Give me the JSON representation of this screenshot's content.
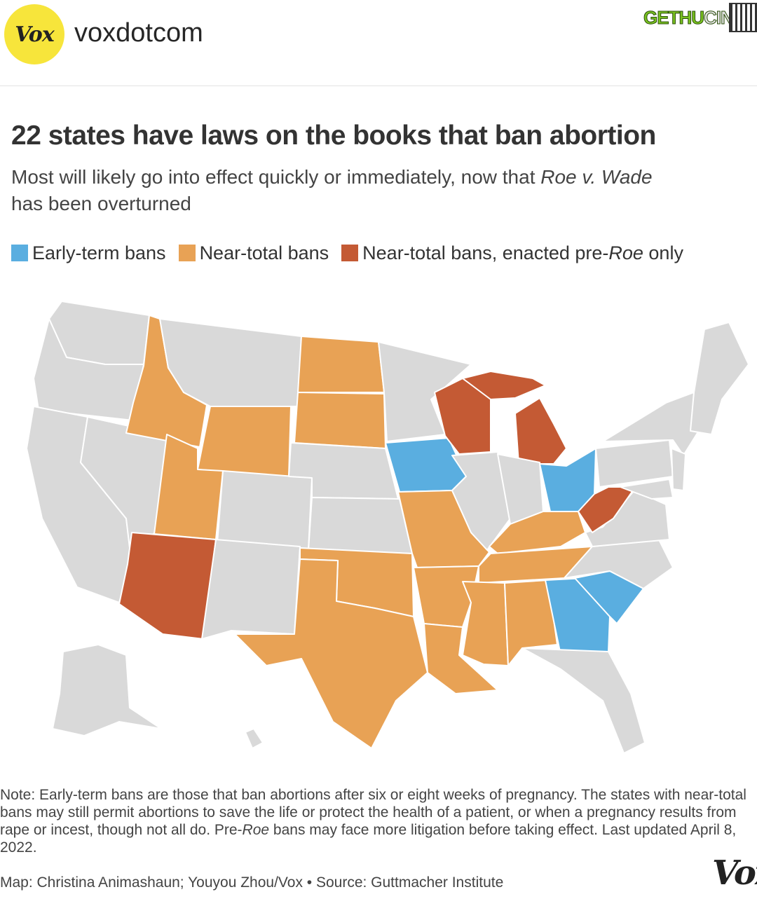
{
  "header": {
    "avatar_text": "Vox",
    "username": "voxdotcom",
    "watermark_part1": "GETHU",
    "watermark_part2": "CINEMA"
  },
  "title": "22 states have laws on the books that ban abortion",
  "subtitle_part1": "Most will likely go into effect quickly or immediately, now that ",
  "subtitle_italic": "Roe v. Wade",
  "subtitle_part2": " has been overturned",
  "legend": [
    {
      "label": "Early-term bans",
      "color": "#5aaee0"
    },
    {
      "label": "Near-total bans",
      "color": "#e8a255"
    },
    {
      "label_prefix": "Near-total bans, enacted pre-",
      "label_italic": "Roe",
      "label_suffix": " only",
      "color": "#c45a34"
    }
  ],
  "map": {
    "colors": {
      "none": "#d9d9d9",
      "early_term": "#5aaee0",
      "near_total": "#e8a255",
      "pre_roe": "#c45a34"
    },
    "states": {
      "early_term": [
        "Iowa",
        "Ohio",
        "Georgia",
        "South Carolina"
      ],
      "near_total": [
        "Idaho",
        "Utah",
        "Wyoming",
        "North Dakota",
        "South Dakota",
        "Missouri",
        "Oklahoma",
        "Texas",
        "Arkansas",
        "Louisiana",
        "Mississippi",
        "Alabama",
        "Tennessee",
        "Kentucky"
      ],
      "pre_roe": [
        "Arizona",
        "Wisconsin",
        "Michigan",
        "West Virginia"
      ]
    }
  },
  "note": {
    "part1": "Note: Early-term bans are those that ban abortions after six or eight weeks of pregnancy. The states with near-total bans may still permit abortions to save the life or protect the health of a patient, or when a pregnancy results from rape or incest, though not all do. Pre-",
    "italic": "Roe",
    "part2": " bans may face more litigation before taking effect. Last updated April 8, 2022."
  },
  "credit": "Map: Christina Animashaun; Youyou Zhou/Vox • Source: Guttmacher Institute",
  "footer_logo": "Vox"
}
